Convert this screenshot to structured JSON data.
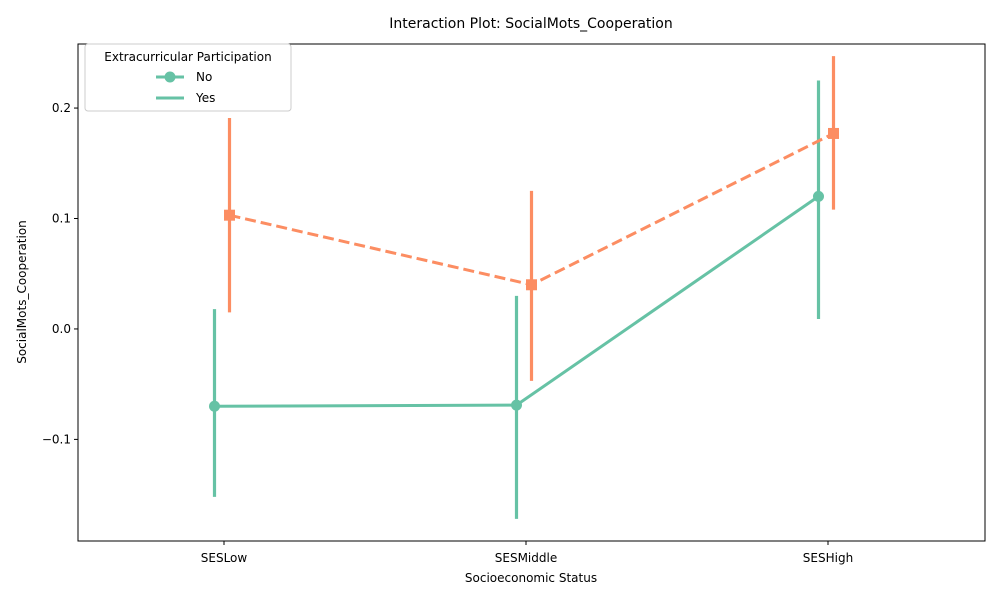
{
  "chart_data": {
    "type": "line",
    "title": "Interaction Plot: SocialMots_Cooperation",
    "xlabel": "Socioeconomic Status",
    "ylabel": "SocialMots_Cooperation",
    "categories": [
      "SESLow",
      "SESMiddle",
      "SESHigh"
    ],
    "ylim": [
      -0.192,
      0.258
    ],
    "yticks": [
      -0.1,
      0.0,
      0.1,
      0.2
    ],
    "ytick_labels": [
      "−0.1",
      "0.0",
      "0.1",
      "0.2"
    ],
    "grid": false,
    "legend": {
      "title": "Extracurricular Participation",
      "placement": "top-left",
      "entries": [
        "No",
        "Yes"
      ]
    },
    "series": [
      {
        "name": "No",
        "color": "#66c2a5",
        "marker": "circle",
        "linestyle": "solid",
        "values": [
          -0.07,
          -0.069,
          0.12
        ],
        "ci_low": [
          -0.152,
          -0.172,
          0.009
        ],
        "ci_high": [
          0.018,
          0.03,
          0.225
        ]
      },
      {
        "name": "Yes",
        "color": "#fc8d62",
        "marker": "square",
        "linestyle": "dashed",
        "values": [
          0.103,
          0.04,
          0.177
        ],
        "ci_low": [
          0.015,
          -0.047,
          0.108
        ],
        "ci_high": [
          0.191,
          0.125,
          0.247
        ]
      }
    ]
  }
}
